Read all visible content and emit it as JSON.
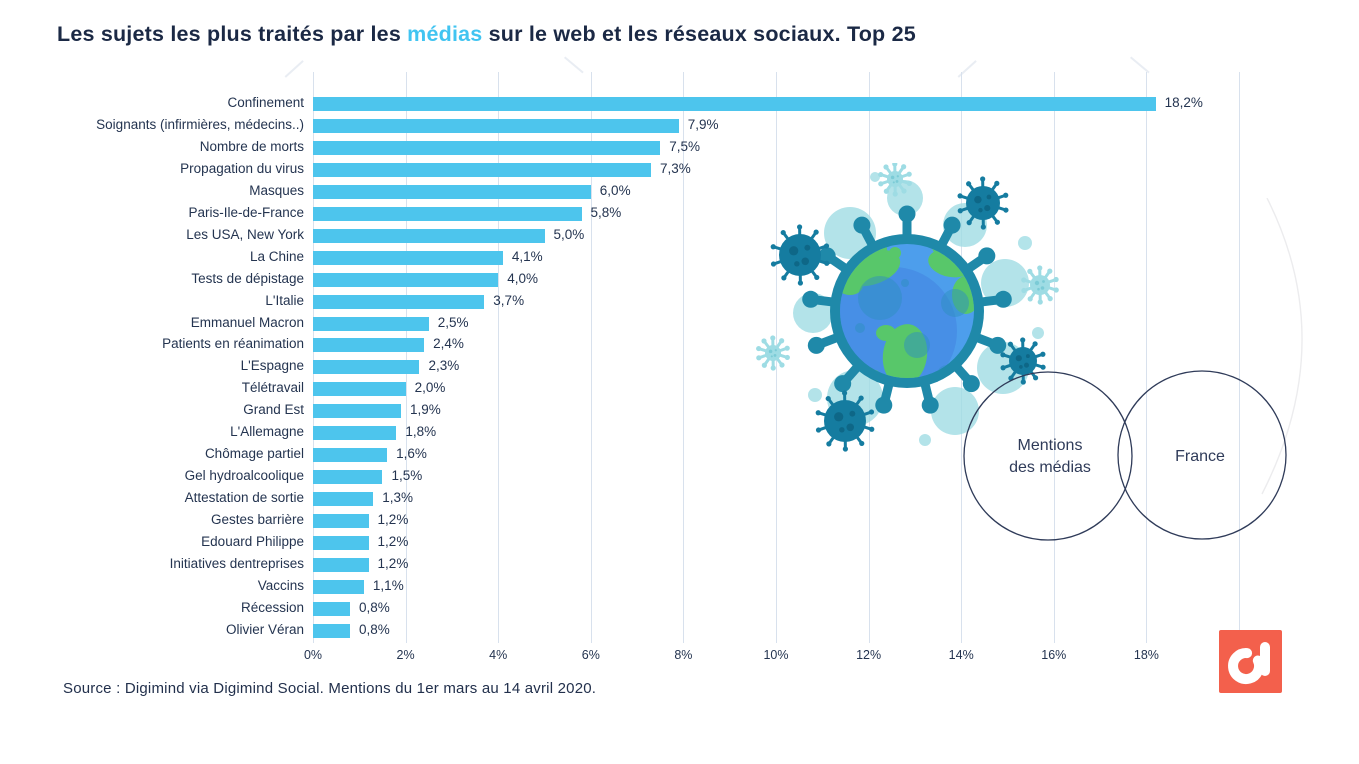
{
  "title": {
    "prefix": "Les sujets les plus traités par les ",
    "highlight": "médias",
    "suffix": " sur le web et les réseaux sociaux. Top 25"
  },
  "source": "Source : Digimind via Digimind Social. Mentions du 1er mars au 14 avril 2020.",
  "venn": {
    "left_circle_label_line1": "Mentions",
    "left_circle_label_line2": "des médias",
    "right_circle_label": "France"
  },
  "logo": {
    "brand": "Digimind",
    "icon": "digimind-d-icon",
    "background_color": "#F3604C"
  },
  "colors": {
    "bar": "#4DC5ED",
    "title_text": "#1B2945",
    "title_highlight": "#41C4F1",
    "grid_line": "#D8E1ED",
    "label_text": "#243450",
    "venn_stroke": "#2F3B59",
    "virus_teal": "#1F89A9",
    "virus_dark_teal": "#157CA0",
    "virus_light_teal": "#9EDCE4",
    "globe_ocean": "#4D9EEC",
    "globe_land": "#58C76A"
  },
  "chart_data": {
    "type": "bar",
    "orientation": "horizontal",
    "title": "Les sujets les plus traités par les médias sur le web et les réseaux sociaux. Top 25",
    "categories": [
      "Confinement",
      "Soignants (infirmières, médecins..)",
      "Nombre de morts",
      "Propagation du virus",
      "Masques",
      "Paris-Ile-de-France",
      "Les USA, New York",
      "La Chine",
      "Tests de dépistage",
      "L'Italie",
      "Emmanuel Macron",
      "Patients en réanimation",
      "L'Espagne",
      "Télétravail",
      "Grand Est",
      "L'Allemagne",
      "Chômage partiel",
      "Gel hydroalcoolique",
      "Attestation de sortie",
      "Gestes barrière",
      "Edouard Philippe",
      "Initiatives dentreprises",
      "Vaccins",
      "Récession",
      "Olivier Véran"
    ],
    "values": [
      18.2,
      7.9,
      7.5,
      7.3,
      6.0,
      5.8,
      5.0,
      4.1,
      4.0,
      3.7,
      2.5,
      2.4,
      2.3,
      2.0,
      1.9,
      1.8,
      1.6,
      1.5,
      1.3,
      1.2,
      1.2,
      1.2,
      1.1,
      0.8,
      0.8
    ],
    "value_labels": [
      "18,2%",
      "7,9%",
      "7,5%",
      "7,3%",
      "6,0%",
      "5,8%",
      "5,0%",
      "4,1%",
      "4,0%",
      "3,7%",
      "2,5%",
      "2,4%",
      "2,3%",
      "2,0%",
      "1,9%",
      "1,8%",
      "1,6%",
      "1,5%",
      "1,3%",
      "1,2%",
      "1,2%",
      "1,2%",
      "1,1%",
      "0,8%",
      "0,8%"
    ],
    "x_ticks": [
      "0%",
      "2%",
      "4%",
      "6%",
      "8%",
      "10%",
      "12%",
      "14%",
      "16%",
      "18%"
    ],
    "xlabel": "",
    "ylabel": "",
    "xlim": [
      0,
      20
    ],
    "grid": true,
    "legend_position": "none"
  }
}
